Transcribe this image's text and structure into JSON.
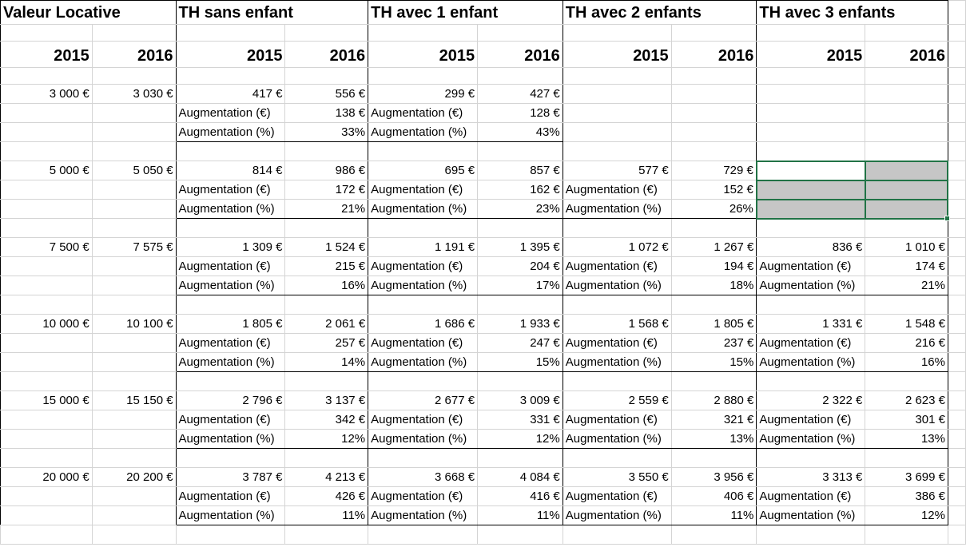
{
  "headers": {
    "valeur_locative": "Valeur Locative",
    "th_sans_enfant": "TH sans enfant",
    "th_1_enfant": "TH avec 1 enfant",
    "th_2_enfants": "TH avec 2 enfants",
    "th_3_enfants": "TH avec 3 enfants"
  },
  "years": [
    "2015",
    "2016",
    "2015",
    "2016",
    "2015",
    "2016",
    "2015",
    "2016",
    "2015",
    "2016"
  ],
  "labels": {
    "aug_eur": "Augmentation (€)",
    "aug_pct": "Augmentation (%)"
  },
  "blocks": [
    {
      "vl2015": "3 000 €",
      "vl2016": "3 030 €",
      "groups": [
        {
          "v2015": "417 €",
          "v2016": "556 €",
          "aug_eur": "138 €",
          "aug_pct": "33%"
        },
        {
          "v2015": "299 €",
          "v2016": "427 €",
          "aug_eur": "128 €",
          "aug_pct": "43%"
        },
        null,
        null
      ]
    },
    {
      "vl2015": "5 000 €",
      "vl2016": "5 050 €",
      "groups": [
        {
          "v2015": "814 €",
          "v2016": "986 €",
          "aug_eur": "172 €",
          "aug_pct": "21%"
        },
        {
          "v2015": "695 €",
          "v2016": "857 €",
          "aug_eur": "162 €",
          "aug_pct": "23%"
        },
        {
          "v2015": "577 €",
          "v2016": "729 €",
          "aug_eur": "152 €",
          "aug_pct": "26%"
        },
        null
      ]
    },
    {
      "vl2015": "7 500 €",
      "vl2016": "7 575 €",
      "groups": [
        {
          "v2015": "1 309 €",
          "v2016": "1 524 €",
          "aug_eur": "215 €",
          "aug_pct": "16%"
        },
        {
          "v2015": "1 191 €",
          "v2016": "1 395 €",
          "aug_eur": "204 €",
          "aug_pct": "17%"
        },
        {
          "v2015": "1 072 €",
          "v2016": "1 267 €",
          "aug_eur": "194 €",
          "aug_pct": "18%"
        },
        {
          "v2015": "836 €",
          "v2016": "1 010 €",
          "aug_eur": "174 €",
          "aug_pct": "21%"
        }
      ]
    },
    {
      "vl2015": "10 000 €",
      "vl2016": "10 100 €",
      "groups": [
        {
          "v2015": "1 805 €",
          "v2016": "2 061 €",
          "aug_eur": "257 €",
          "aug_pct": "14%"
        },
        {
          "v2015": "1 686 €",
          "v2016": "1 933 €",
          "aug_eur": "247 €",
          "aug_pct": "15%"
        },
        {
          "v2015": "1 568 €",
          "v2016": "1 805 €",
          "aug_eur": "237 €",
          "aug_pct": "15%"
        },
        {
          "v2015": "1 331 €",
          "v2016": "1 548 €",
          "aug_eur": "216 €",
          "aug_pct": "16%"
        }
      ]
    },
    {
      "vl2015": "15 000 €",
      "vl2016": "15 150 €",
      "groups": [
        {
          "v2015": "2 796 €",
          "v2016": "3 137 €",
          "aug_eur": "342 €",
          "aug_pct": "12%"
        },
        {
          "v2015": "2 677 €",
          "v2016": "3 009 €",
          "aug_eur": "331 €",
          "aug_pct": "12%"
        },
        {
          "v2015": "2 559 €",
          "v2016": "2 880 €",
          "aug_eur": "321 €",
          "aug_pct": "13%"
        },
        {
          "v2015": "2 322 €",
          "v2016": "2 623 €",
          "aug_eur": "301 €",
          "aug_pct": "13%"
        }
      ]
    },
    {
      "vl2015": "20 000 €",
      "vl2016": "20 200 €",
      "groups": [
        {
          "v2015": "3 787 €",
          "v2016": "4 213 €",
          "aug_eur": "426 €",
          "aug_pct": "11%"
        },
        {
          "v2015": "3 668 €",
          "v2016": "4 084 €",
          "aug_eur": "416 €",
          "aug_pct": "11%"
        },
        {
          "v2015": "3 550 €",
          "v2016": "3 956 €",
          "aug_eur": "406 €",
          "aug_pct": "11%"
        },
        {
          "v2015": "3 313 €",
          "v2016": "3 699 €",
          "aug_eur": "386 €",
          "aug_pct": "12%"
        }
      ]
    }
  ]
}
